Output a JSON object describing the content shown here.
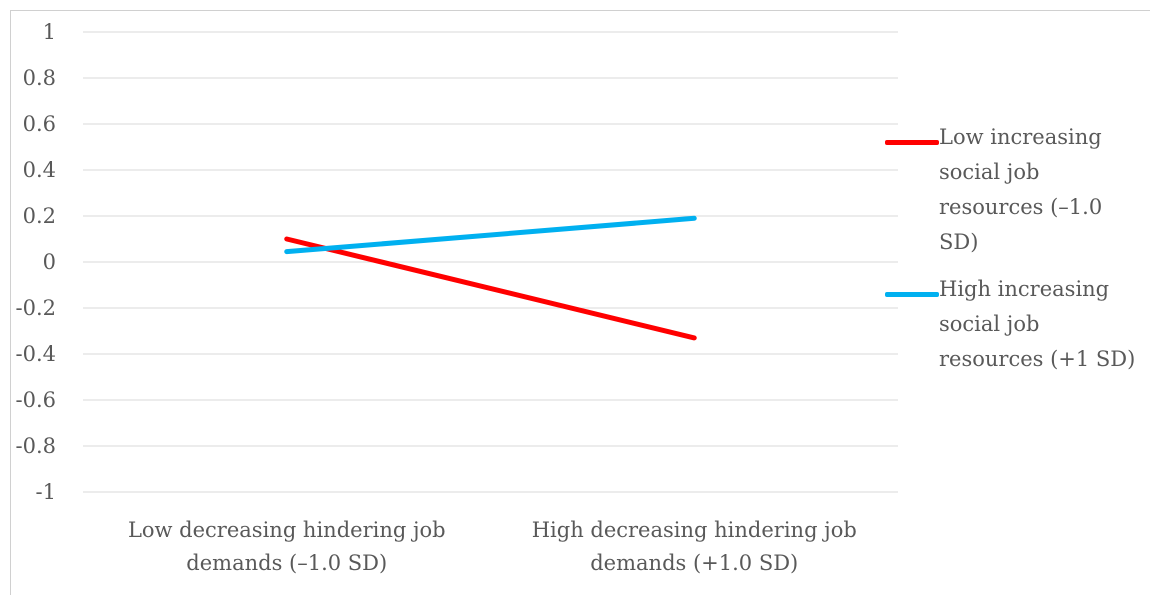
{
  "chart_data": {
    "type": "line",
    "categories": [
      "Low decreasing hindering job demands (–1.0 SD)",
      "High decreasing hindering job demands (+1.0 SD)"
    ],
    "series": [
      {
        "name": "Low increasing social job resources  (–1.0 SD)",
        "values": [
          0.1,
          -0.33
        ],
        "color": "#ff0000"
      },
      {
        "name": "High increasing social job resources (+1 SD)",
        "values": [
          0.045,
          0.19
        ],
        "color": "#00b0f0"
      }
    ],
    "y_ticks": [
      "1",
      "0.8",
      "0.6",
      "0.4",
      "0.2",
      "0",
      "-0.2",
      "-0.4",
      "-0.6",
      "-0.8",
      "-1"
    ],
    "ylim": [
      -1,
      1
    ],
    "grid": true,
    "legend_position": "right"
  }
}
